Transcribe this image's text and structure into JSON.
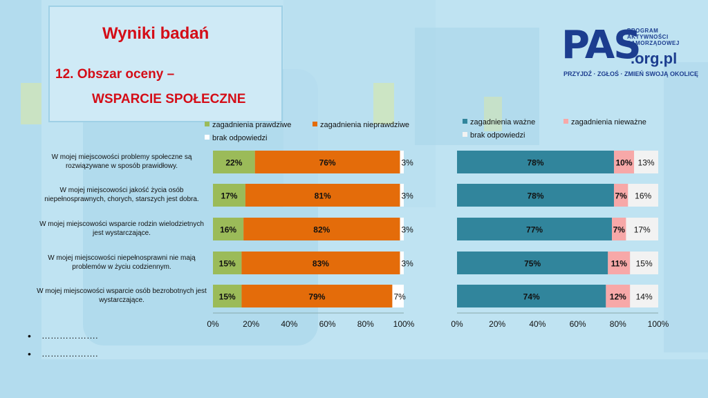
{
  "slide": {
    "title": "Wyniki badań",
    "subtitle_line1": "12. Obszar oceny –",
    "subtitle_line2": "WSPARCIE SPOŁECZNE"
  },
  "logo": {
    "main": "PAS",
    "domain": ".org.pl",
    "program_line1": "PROGRAM",
    "program_line2": "AKTYWNOŚCI",
    "program_line3": "SAMORZĄDOWEJ",
    "slogan": "PRZYJDŹ · ZGŁOŚ · ZMIEŃ SWOJĄ OKOLICĘ"
  },
  "bullets": [
    "……………….",
    "………………."
  ],
  "colors": {
    "green": "#9bbb59",
    "orange": "#e46c0a",
    "white": "#ffffff",
    "teal": "#31859c",
    "pink": "#f7a8a8",
    "lightgray": "#f2f2f2"
  },
  "chart_data": [
    {
      "type": "bar",
      "orientation": "horizontal",
      "stacked": true,
      "categories": [
        "W mojej miejscowości  problemy społeczne są rozwiązywane w sposób prawidłowy.",
        "W mojej miejscowości jakość życia osób niepełnosprawnych, chorych, starszych jest dobra.",
        "W mojej miejscowości wsparcie rodzin wielodzietnych jest wystarczające.",
        "W mojej miejscowości niepełnosprawni nie mają problemów w życiu codziennym.",
        "W mojej miejscowości wsparcie osób bezrobotnych jest wystarczające."
      ],
      "category_lines": [
        [
          "W mojej miejscowości  problemy społeczne są",
          "rozwiązywane w sposób prawidłowy."
        ],
        [
          "W mojej miejscowości jakość życia osób",
          "niepełnosprawnych, chorych, starszych jest dobra."
        ],
        [
          "W mojej miejscowości wsparcie rodzin wielodzietnych",
          "jest wystarczające."
        ],
        [
          "W mojej miejscowości niepełnosprawni nie mają",
          "problemów w życiu codziennym."
        ],
        [
          "W mojej miejscowości wsparcie osób bezrobotnych jest",
          "wystarczające."
        ]
      ],
      "series": [
        {
          "name": "zagadnienia prawdziwe",
          "color": "#9bbb59",
          "values": [
            22,
            17,
            16,
            15,
            15
          ],
          "labels": [
            "22%",
            "17%",
            "16%",
            "15%",
            "15%"
          ]
        },
        {
          "name": "zagadnienia nieprawdziwe",
          "color": "#e46c0a",
          "values": [
            76,
            81,
            82,
            83,
            79
          ],
          "labels": [
            "76%",
            "81%",
            "82%",
            "83%",
            "79%"
          ]
        },
        {
          "name": "brak odpowiedzi",
          "color": "#ffffff",
          "values": [
            3,
            3,
            3,
            3,
            7
          ],
          "labels": [
            "3%",
            "3%",
            "3%",
            "3%",
            "7%"
          ]
        }
      ],
      "xticks": [
        "0%",
        "20%",
        "40%",
        "60%",
        "80%",
        "100%"
      ],
      "xlim": [
        0,
        100
      ],
      "legend_position": "top"
    },
    {
      "type": "bar",
      "orientation": "horizontal",
      "stacked": true,
      "series": [
        {
          "name": "zagadnienia ważne",
          "color": "#31859c",
          "values": [
            78,
            78,
            77,
            75,
            74
          ],
          "labels": [
            "78%",
            "78%",
            "77%",
            "75%",
            "74%"
          ]
        },
        {
          "name": "zagadnienia nieważne",
          "color": "#f7a8a8",
          "values": [
            10,
            7,
            7,
            11,
            12
          ],
          "labels": [
            "10%",
            "7%",
            "7%",
            "11%",
            "12%"
          ]
        },
        {
          "name": "brak odpowiedzi",
          "color": "#f2f2f2",
          "values": [
            13,
            16,
            17,
            15,
            14
          ],
          "labels": [
            "13%",
            "16%",
            "17%",
            "15%",
            "14%"
          ]
        }
      ],
      "xticks": [
        "0%",
        "20%",
        "40%",
        "60%",
        "80%",
        "100%"
      ],
      "xlim": [
        0,
        100
      ],
      "legend_position": "top"
    }
  ]
}
